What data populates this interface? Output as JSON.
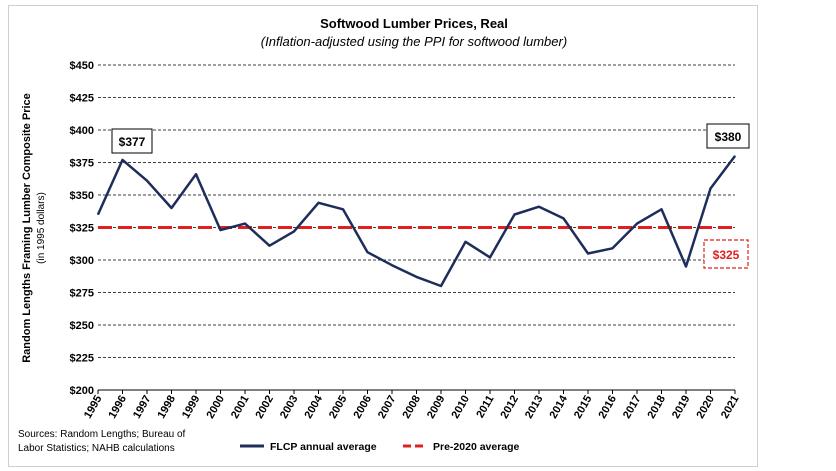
{
  "chart_data": {
    "type": "line",
    "title": "Softwood Lumber Prices, Real",
    "subtitle": "(Inflation-adjusted using the PPI for softwood lumber)",
    "ylabel": "Random Lengths Framing Lumber Composite Price",
    "ylabel_sub": "(in 1995 dollars)",
    "ylim": [
      200,
      450
    ],
    "yticks": [
      200,
      225,
      250,
      275,
      300,
      325,
      350,
      375,
      400,
      425,
      450
    ],
    "ytick_labels": [
      "$200",
      "$225",
      "$250",
      "$275",
      "$300",
      "$325",
      "$350",
      "$375",
      "$400",
      "$425",
      "$450"
    ],
    "x": [
      "1995",
      "1996",
      "1997",
      "1998",
      "1999",
      "2000",
      "2001",
      "2002",
      "2003",
      "2004",
      "2005",
      "2006",
      "2007",
      "2008",
      "2009",
      "2010",
      "2011",
      "2012",
      "2013",
      "2014",
      "2015",
      "2016",
      "2017",
      "2018",
      "2019",
      "2020",
      "2021"
    ],
    "grid": "horizontal dashed",
    "series": [
      {
        "name": "FLCP annual average",
        "color": "#1f2d5a",
        "style": "solid",
        "values": [
          335,
          377,
          361,
          340,
          366,
          323,
          328,
          311,
          322,
          344,
          339,
          306,
          296,
          287,
          280,
          314,
          302,
          335,
          341,
          332,
          305,
          309,
          328,
          339,
          295,
          355,
          380
        ]
      },
      {
        "name": "Pre-2020 average",
        "color": "#e0201f",
        "style": "dashed",
        "values": [
          325,
          325,
          325,
          325,
          325,
          325,
          325,
          325,
          325,
          325,
          325,
          325,
          325,
          325,
          325,
          325,
          325,
          325,
          325,
          325,
          325,
          325,
          325,
          325,
          325,
          325,
          325
        ]
      }
    ],
    "annotations": [
      {
        "text": "$377",
        "x": "1996",
        "value": 377
      },
      {
        "text": "$380",
        "x": "2021",
        "value": 380
      },
      {
        "text": "$325",
        "x": "2021",
        "value": 325
      }
    ],
    "legend": "bottom",
    "source": [
      "Sources: Random Lengths; Bureau of",
      "Labor Statistics; NAHB calculations"
    ]
  }
}
